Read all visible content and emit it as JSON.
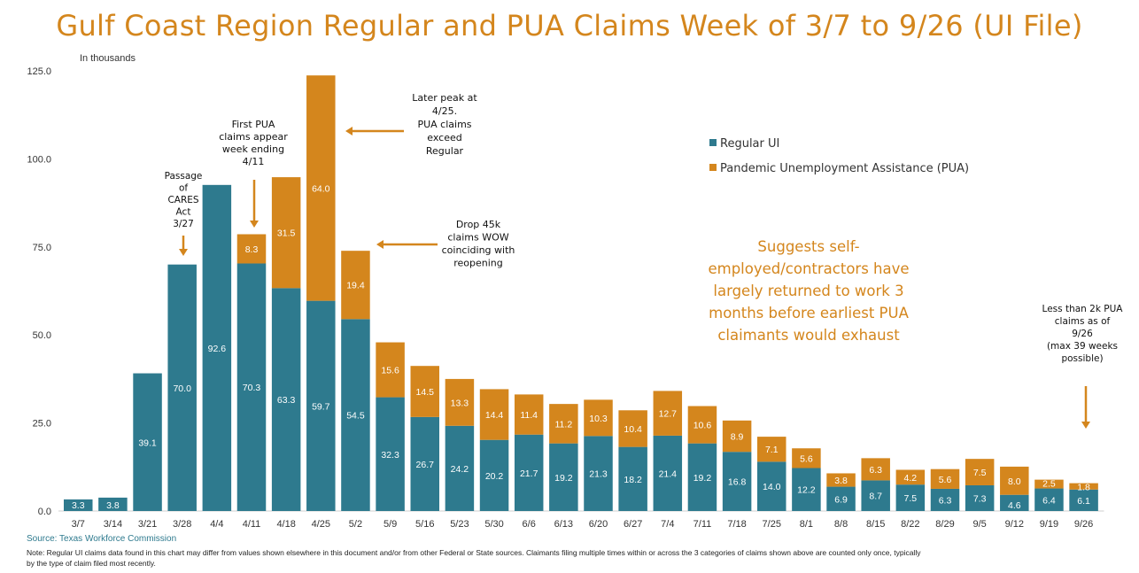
{
  "colors": {
    "regular": "#2e7a8e",
    "pua": "#d4861d",
    "title": "#d4861d",
    "annotation_arrow": "#d4861d",
    "source": "#2e7a8e"
  },
  "chart_data": {
    "type": "bar",
    "stacked": true,
    "title": "Gulf Coast Region Regular and PUA Claims Week of 3/7 to 9/26 (UI File)",
    "ylabel": "In thousands",
    "ylim": [
      0,
      125
    ],
    "yticks": [
      "0.0",
      "25.0",
      "50.0",
      "75.0",
      "100.0",
      "125.0"
    ],
    "grid": false,
    "legend_position": "right",
    "categories": [
      "3/7",
      "3/14",
      "3/21",
      "3/28",
      "4/4",
      "4/11",
      "4/18",
      "4/25",
      "5/2",
      "5/9",
      "5/16",
      "5/23",
      "5/30",
      "6/6",
      "6/13",
      "6/20",
      "6/27",
      "7/4",
      "7/11",
      "7/18",
      "7/25",
      "8/1",
      "8/8",
      "8/15",
      "8/22",
      "8/29",
      "9/5",
      "9/12",
      "9/19",
      "9/26"
    ],
    "series": [
      {
        "name": "Regular UI",
        "values": [
          3.3,
          3.8,
          39.1,
          70.0,
          92.6,
          70.3,
          63.3,
          59.7,
          54.5,
          32.3,
          26.7,
          24.2,
          20.2,
          21.7,
          19.2,
          21.3,
          18.2,
          21.4,
          19.2,
          16.8,
          14.0,
          12.2,
          6.9,
          8.7,
          7.5,
          6.3,
          7.3,
          4.6,
          6.4,
          6.1
        ],
        "labels": [
          "3.3",
          "3.8",
          "39.1",
          "70.0",
          "92.6",
          "70.3",
          "63.3",
          "59.7",
          "54.5",
          "32.3",
          "26.7",
          "24.2",
          "20.2",
          "21.7",
          "19.2",
          "21.3",
          "18.2",
          "21.4",
          "19.2",
          "16.8",
          "14.0",
          "12.2",
          "6.9",
          "8.7",
          "7.5",
          "6.3",
          "7.3",
          "4.6",
          "6.4",
          "6.1"
        ]
      },
      {
        "name": "Pandemic Unemployment Assistance (PUA)",
        "values": [
          0,
          0,
          0,
          0,
          0,
          8.3,
          31.5,
          64.0,
          19.4,
          15.6,
          14.5,
          13.3,
          14.4,
          11.4,
          11.2,
          10.3,
          10.4,
          12.7,
          10.6,
          8.9,
          7.1,
          5.6,
          3.8,
          6.3,
          4.2,
          5.6,
          7.5,
          8.0,
          2.5,
          1.8
        ],
        "labels": [
          "",
          "",
          "",
          "",
          "",
          "8.3",
          "31.5",
          "64.0",
          "19.4",
          "15.6",
          "14.5",
          "13.3",
          "14.4",
          "11.4",
          "11.2",
          "10.3",
          "10.4",
          "12.7",
          "10.6",
          "8.9",
          "7.1",
          "5.6",
          "3.8",
          "6.3",
          "4.2",
          "5.6",
          "7.5",
          "8.0",
          "2.5",
          "1.8"
        ]
      }
    ],
    "annotations": [
      {
        "text": [
          "Passage",
          "of",
          "CARES",
          "Act",
          "3/27"
        ],
        "category": "3/28"
      },
      {
        "text": [
          "First PUA",
          "claims appear",
          "week ending",
          "4/11"
        ],
        "category": "4/11"
      },
      {
        "text": [
          "Later peak at",
          "4/25.",
          "PUA claims",
          "exceed",
          "Regular"
        ],
        "category": "4/25"
      },
      {
        "text": [
          "Drop 45k",
          "claims WOW",
          "coinciding with",
          "reopening"
        ],
        "category": "5/2"
      },
      {
        "text": [
          "Suggests self-",
          "employed/contractors have",
          "largely returned to work 3",
          "months before earliest PUA",
          "claimants would exhaust"
        ],
        "category": ""
      },
      {
        "text": [
          "Less than 2k PUA",
          "claims as of",
          "9/26",
          "(max 39 weeks",
          "possible)"
        ],
        "category": "9/26"
      }
    ]
  },
  "footer": {
    "source": "Source: Texas Workforce Commission",
    "note": "Note: Regular UI claims data found in this chart may differ from values shown elsewhere in this document and/or from other Federal or State sources. Claimants filing multiple times within or across the 3 categories of claims shown above are counted only once, typically by the type of claim filed most recently."
  }
}
